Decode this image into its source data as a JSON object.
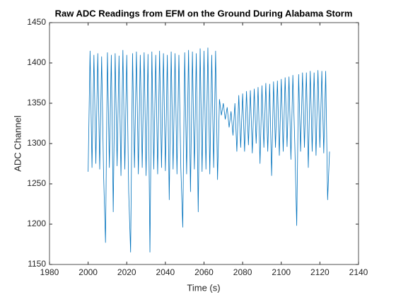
{
  "chart_data": {
    "type": "line",
    "title": "Raw ADC Readings from EFM on the Ground During Alabama Storm",
    "x_label": "Time (s)",
    "y_label": "ADC Channel",
    "x": [
      2000,
      2001,
      2002,
      2003,
      2004,
      2005,
      2006,
      2007,
      2008,
      2009,
      2010,
      2011,
      2012,
      2013,
      2014,
      2015,
      2016,
      2017,
      2018,
      2019,
      2020,
      2021,
      2022,
      2023,
      2024,
      2025,
      2026,
      2027,
      2028,
      2029,
      2030,
      2031,
      2032,
      2033,
      2034,
      2035,
      2036,
      2037,
      2038,
      2039,
      2040,
      2041,
      2042,
      2043,
      2044,
      2045,
      2046,
      2047,
      2048,
      2049,
      2050,
      2051,
      2052,
      2053,
      2054,
      2055,
      2056,
      2057,
      2058,
      2059,
      2060,
      2061,
      2062,
      2063,
      2064,
      2065,
      2066,
      2067,
      2068,
      2069,
      2070,
      2071,
      2072,
      2073,
      2074,
      2075,
      2076,
      2077,
      2078,
      2079,
      2080,
      2081,
      2082,
      2083,
      2084,
      2085,
      2086,
      2087,
      2088,
      2089,
      2090,
      2091,
      2092,
      2093,
      2094,
      2095,
      2096,
      2097,
      2098,
      2099,
      2100,
      2101,
      2102,
      2103,
      2104,
      2105,
      2106,
      2107,
      2108,
      2109,
      2110,
      2111,
      2112,
      2113,
      2114,
      2115,
      2116,
      2117,
      2118,
      2119,
      2120,
      2121,
      2122,
      2123,
      2124,
      2125
    ],
    "series": [
      {
        "name": "ADC",
        "color": "#0072bd",
        "values": [
          1265,
          1415,
          1270,
          1410,
          1275,
          1412,
          1268,
          1408,
          1262,
          1177,
          1413,
          1270,
          1410,
          1215,
          1412,
          1272,
          1409,
          1260,
          1416,
          1268,
          1410,
          1240,
          1165,
          1412,
          1270,
          1414,
          1262,
          1410,
          1270,
          1413,
          1260,
          1411,
          1165,
          1414,
          1268,
          1410,
          1262,
          1415,
          1270,
          1412,
          1266,
          1410,
          1230,
          1414,
          1268,
          1412,
          1262,
          1410,
          1270,
          1196,
          1413,
          1262,
          1416,
          1240,
          1414,
          1268,
          1412,
          1215,
          1418,
          1265,
          1415,
          1268,
          1419,
          1262,
          1410,
          1270,
          1415,
          1255,
          1355,
          1335,
          1350,
          1330,
          1345,
          1320,
          1340,
          1310,
          1350,
          1290,
          1360,
          1295,
          1362,
          1290,
          1365,
          1298,
          1366,
          1288,
          1368,
          1300,
          1370,
          1275,
          1372,
          1295,
          1375,
          1290,
          1374,
          1260,
          1377,
          1295,
          1378,
          1285,
          1380,
          1290,
          1382,
          1296,
          1383,
          1280,
          1385,
          1300,
          1198,
          1386,
          1290,
          1388,
          1295,
          1388,
          1270,
          1390,
          1290,
          1388,
          1285,
          1391,
          1295,
          1390,
          1288,
          1390,
          1230,
          1290
        ]
      }
    ],
    "xlim": [
      1980,
      2140
    ],
    "xticks": [
      1980,
      2000,
      2020,
      2040,
      2060,
      2080,
      2100,
      2120,
      2140
    ],
    "ylim": [
      1150,
      1450
    ],
    "yticks": [
      1150,
      1200,
      1250,
      1300,
      1350,
      1400,
      1450
    ],
    "grid": false
  }
}
